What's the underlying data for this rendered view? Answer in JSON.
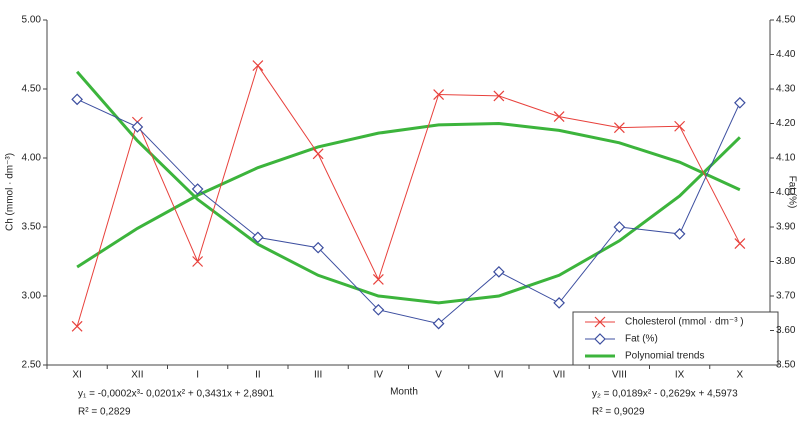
{
  "chart_data": {
    "type": "line",
    "y_label": "Ch (mmol · dm⁻³)",
    "y2_label": "Fat (%)",
    "x_label": "Month",
    "categories": [
      "XI",
      "XII",
      "I",
      "II",
      "III",
      "IV",
      "V",
      "VI",
      "VII",
      "VIII",
      "IX",
      "X"
    ],
    "series": [
      {
        "name": "Cholesterol (mmol · dm⁻³ )",
        "color": "#e8413c",
        "marker": "x",
        "axis": "y",
        "values": [
          2.78,
          4.26,
          3.25,
          4.67,
          4.03,
          3.12,
          4.46,
          4.45,
          4.3,
          4.22,
          4.23,
          3.38
        ]
      },
      {
        "name": "Fat (%)",
        "color": "#3d4fa0",
        "marker": "diamond",
        "axis": "y2",
        "values": [
          4.27,
          4.19,
          4.01,
          3.87,
          3.84,
          3.66,
          3.62,
          3.77,
          3.68,
          3.9,
          3.88,
          4.26
        ]
      }
    ],
    "trends": {
      "name": "Polynomial trends",
      "color": "#3cb43c",
      "lines": [
        {
          "axis": "y",
          "values": [
            3.21,
            3.49,
            3.73,
            3.93,
            4.08,
            4.18,
            4.24,
            4.25,
            4.2,
            4.11,
            3.97,
            3.77
          ]
        },
        {
          "axis": "y2",
          "values": [
            4.35,
            4.15,
            3.98,
            3.85,
            3.76,
            3.7,
            3.68,
            3.7,
            3.76,
            3.86,
            3.99,
            4.16
          ]
        }
      ]
    },
    "ylim": [
      2.5,
      5.0
    ],
    "yticks": [
      {
        "value": 2.5,
        "label": "2.50"
      },
      {
        "value": 3,
        "label": "3.00"
      },
      {
        "value": 3.5,
        "label": "3.50"
      },
      {
        "value": 4,
        "label": "4.00"
      },
      {
        "value": 4.5,
        "label": "4.50"
      },
      {
        "value": 5,
        "label": "5.00"
      }
    ],
    "y2lim": [
      3.5,
      4.5
    ],
    "y2ticks": [
      {
        "value": 3.5,
        "label": "3.50"
      },
      {
        "value": 3.6,
        "label": "3.60"
      },
      {
        "value": 3.7,
        "label": "3.70"
      },
      {
        "value": 3.8,
        "label": "3.80"
      },
      {
        "value": 3.9,
        "label": "3.90"
      },
      {
        "value": 4,
        "label": "4.00"
      },
      {
        "value": 4.1,
        "label": "4.10"
      },
      {
        "value": 4.2,
        "label": "4.20"
      },
      {
        "value": 4.3,
        "label": "4.30"
      },
      {
        "value": 4.4,
        "label": "4.40"
      },
      {
        "value": 4.5,
        "label": "4.50"
      }
    ],
    "annotations": [
      "y₁ = -0,0002x³- 0,0201x² + 0,3431x + 2,8901",
      "R² = 0,2829",
      "y₂ = 0,0189x² - 0,2629x + 4,5973",
      "R² = 0,9029"
    ]
  }
}
